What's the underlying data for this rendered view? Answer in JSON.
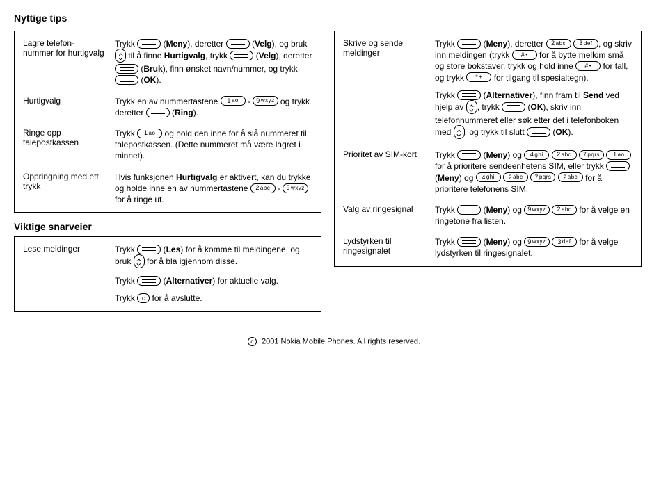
{
  "title": "Nyttige tips",
  "left": {
    "box_rows": [
      {
        "label": "Lagre telefon-\nnummer for hurtigvalg",
        "html": "Trykk {soft} (<b>Meny</b>), deretter {soft} (<b>Velg</b>), og bruk {nav} til å finne <b>Hurtigvalg</b>, trykk {soft} (<b>Velg</b>), deretter {soft} (<b>Bruk</b>), finn ønsket navn/nummer, og trykk {soft} (<b>OK</b>)."
      },
      {
        "label": "Hurtigvalg",
        "html": "Trykk en av nummertastene {k:1:ao} - {k:9:wxyz} og trykk deretter {soft} (<b>Ring</b>)."
      },
      {
        "label": "Ringe opp talepostkassen",
        "html": "Trykk {k:1:ao} og hold den inne for å slå nummeret til talepostkassen. (Dette nummeret må være lagret i minnet)."
      },
      {
        "label": "Oppringning med ett trykk",
        "html": "Hvis funksjonen <b>Hurtigvalg</b> er aktivert, kan du trykke og holde inne en av nummertastene {k:2:abc} - {k:9:wxyz} for å ringe ut."
      }
    ],
    "section2_title": "Viktige snarveier",
    "box2_rows": [
      {
        "label": "Lese meldinger",
        "paragraphs": [
          "Trykk {soft} (<b>Les</b>) for å komme til meldingene, og bruk {nav} for å bla igjennom disse.",
          "Trykk {soft} (<b>Alternativer</b>) for aktuelle valg.",
          "Trykk {c} for å avslutte."
        ]
      }
    ]
  },
  "right": {
    "box_rows": [
      {
        "label": "Skrive og sende meldinger",
        "paragraphs": [
          "Trykk {soft} (<b>Meny</b>), deretter {k:2:abc} {k:3:def}, og skriv inn meldingen (trykk {k:#:•} for å bytte mellom små og store bokstaver, trykk og hold inne {k:#:•} for tall, og trykk {k:*:+} for tilgang til spesialtegn).",
          "Trykk {soft} (<b>Alternativer</b>), finn fram til <b>Send</b> ved hjelp av {nav}, trykk {soft} (<b>OK</b>), skriv inn telefonnummeret eller søk etter det i telefonboken med {nav}, og trykk til slutt {soft} (<b>OK</b>)."
        ]
      },
      {
        "label": "Prioritet av SIM-kort",
        "html": "Trykk {soft} (<b>Meny</b>) og {k:4:ghi} {k:2:abc} {k:7:pqrs} {k:1:ao} for å prioritere sendeenhetens SIM, eller trykk {soft} (<b>Meny</b>) og {k:4:ghi} {k:2:abc} {k:7:pqrs} {k:2:abc} for å prioritere telefonens SIM."
      },
      {
        "label": "Valg av ringesignal",
        "html": "Trykk {soft} (<b>Meny</b>) og {k:9:wxyz} {k:2:abc} for å velge en ringetone fra listen."
      },
      {
        "label": "Lydstyrken til ringesignalet",
        "html": "Trykk {soft} (<b>Meny</b>) og {k:9:wxyz} {k:3:def} for å velge lydstyrken til ringesignalet."
      }
    ]
  },
  "footer": "2001 Nokia Mobile Phones. All rights reserved."
}
